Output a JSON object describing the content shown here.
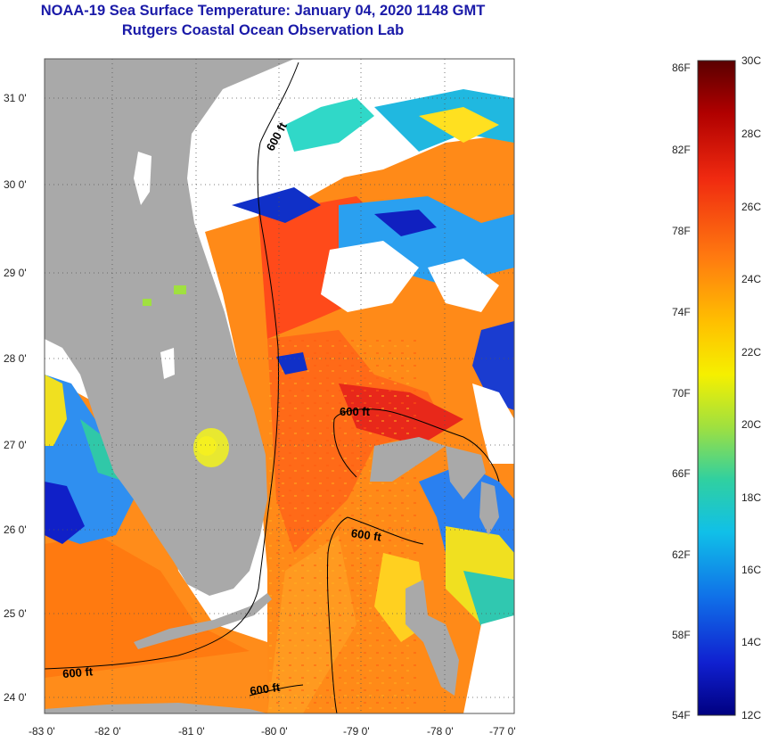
{
  "header": {
    "title": "NOAA-19 Sea Surface Temperature:  January 04, 2020 1148 GMT",
    "subtitle": "Rutgers Coastal Ocean Observation Lab"
  },
  "map": {
    "lat_ticks": [
      "31 0'",
      "30 0'",
      "29 0'",
      "28 0'",
      "27 0'",
      "26 0'",
      "25 0'",
      "24 0'"
    ],
    "lon_ticks": [
      "-83 0'",
      "-82 0'",
      "-81 0'",
      "-80 0'",
      "-79 0'",
      "-78 0'",
      "-77 0'"
    ],
    "contour_labels": [
      "600 ft",
      "600 ft",
      "600 ft",
      "600 ft",
      "600 ft"
    ],
    "colors": {
      "land": "#a9a9a9",
      "cloud": "#ffffff",
      "contour": "#000000"
    }
  },
  "colorbar": {
    "fahrenheit_labels": [
      "86F",
      "82F",
      "78F",
      "74F",
      "70F",
      "66F",
      "62F",
      "58F",
      "54F"
    ],
    "celsius_labels": [
      "30C",
      "28C",
      "26C",
      "24C",
      "22C",
      "20C",
      "18C",
      "16C",
      "14C",
      "12C"
    ]
  }
}
